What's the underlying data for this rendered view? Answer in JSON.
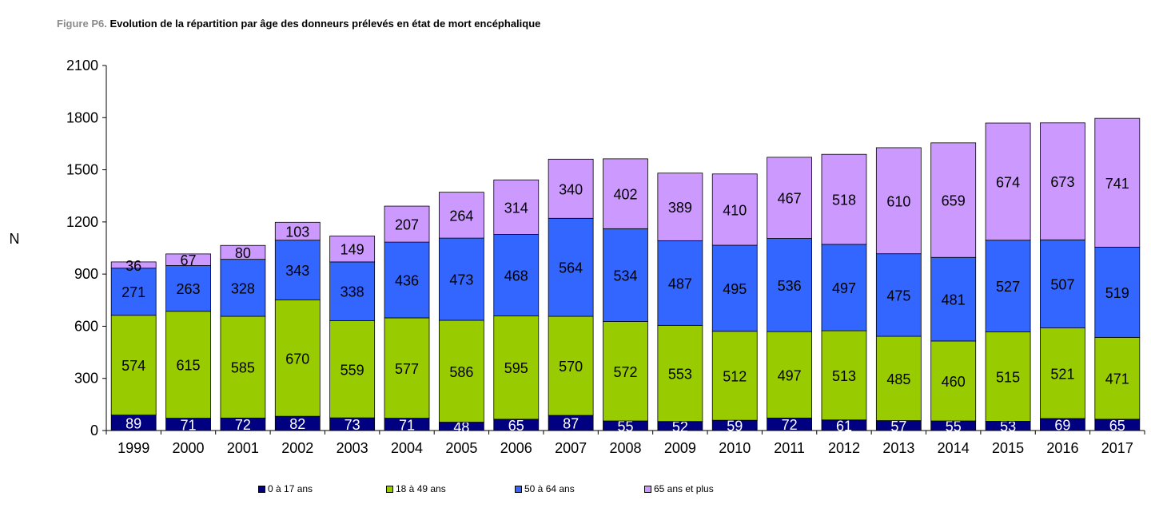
{
  "title_prefix": "Figure P6.",
  "title_text": " Evolution de la répartition par âge des donneurs prélevés en état de mort encéphalique",
  "chart_data": {
    "type": "bar",
    "stacked": true,
    "ylabel": "N",
    "xlabel": "",
    "ylim": [
      0,
      2100
    ],
    "yticks": [
      0,
      300,
      600,
      900,
      1200,
      1500,
      1800,
      2100
    ],
    "grid": false,
    "legend_position": "bottom",
    "categories": [
      "1999",
      "2000",
      "2001",
      "2002",
      "2003",
      "2004",
      "2005",
      "2006",
      "2007",
      "2008",
      "2009",
      "2010",
      "2011",
      "2012",
      "2013",
      "2014",
      "2015",
      "2016",
      "2017"
    ],
    "series": [
      {
        "name": "0 à 17 ans",
        "color": "#000080",
        "label_color": "#ffffff",
        "values": [
          89,
          71,
          72,
          82,
          73,
          71,
          48,
          65,
          87,
          55,
          52,
          59,
          72,
          61,
          57,
          55,
          53,
          69,
          65
        ]
      },
      {
        "name": "18 à 49 ans",
        "color": "#99cc00",
        "label_color": "#000000",
        "values": [
          574,
          615,
          585,
          670,
          559,
          577,
          586,
          595,
          570,
          572,
          553,
          512,
          497,
          513,
          485,
          460,
          515,
          521,
          471
        ]
      },
      {
        "name": "50 à 64 ans",
        "color": "#3366ff",
        "label_color": "#000000",
        "values": [
          271,
          263,
          328,
          343,
          338,
          436,
          473,
          468,
          564,
          534,
          487,
          495,
          536,
          497,
          475,
          481,
          527,
          507,
          519
        ]
      },
      {
        "name": "65 ans et plus",
        "color": "#cc99ff",
        "label_color": "#000000",
        "values": [
          36,
          67,
          80,
          103,
          149,
          207,
          264,
          314,
          340,
          402,
          389,
          410,
          467,
          518,
          610,
          659,
          674,
          673,
          741
        ]
      }
    ]
  }
}
